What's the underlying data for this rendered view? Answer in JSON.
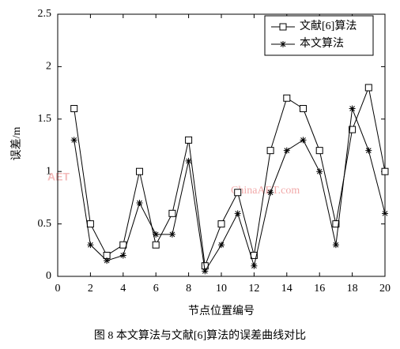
{
  "chart_data": {
    "type": "line",
    "x_label": "节点位置编号",
    "y_label": "误差/m",
    "caption": "图 8  本文算法与文献[6]算法的误差曲线对比",
    "watermark": [
      "AET",
      "ChinaAET.com"
    ],
    "x": [
      1,
      2,
      3,
      4,
      5,
      6,
      7,
      8,
      9,
      10,
      11,
      12,
      13,
      14,
      15,
      16,
      17,
      18,
      19,
      20
    ],
    "series": [
      {
        "name": "文献[6]算法",
        "color": "#000000",
        "marker": "square",
        "values": [
          1.6,
          0.5,
          0.2,
          0.3,
          1.0,
          0.3,
          0.6,
          1.3,
          0.1,
          0.5,
          0.8,
          0.2,
          1.2,
          1.7,
          1.6,
          1.2,
          0.5,
          1.4,
          1.8,
          1.0
        ]
      },
      {
        "name": "本文算法",
        "color": "#000000",
        "marker": "star",
        "values": [
          1.3,
          0.3,
          0.15,
          0.2,
          0.7,
          0.4,
          0.4,
          1.1,
          0.05,
          0.3,
          0.6,
          0.1,
          0.8,
          1.2,
          1.3,
          1.0,
          0.3,
          1.6,
          1.2,
          0.6
        ]
      }
    ],
    "xlim": [
      0,
      20
    ],
    "xticks": [
      0,
      2,
      4,
      6,
      8,
      10,
      12,
      14,
      16,
      18,
      20
    ],
    "ylim": [
      0,
      2.5
    ],
    "yticks": [
      0,
      0.5,
      1,
      1.5,
      2,
      2.5
    ],
    "legend": "top-right",
    "grid": false
  }
}
